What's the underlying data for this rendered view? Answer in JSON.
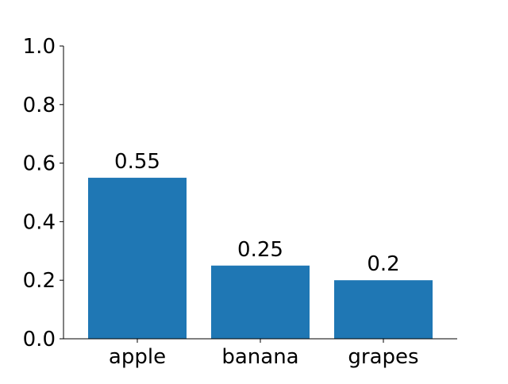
{
  "chart_data": {
    "type": "bar",
    "categories": [
      "apple",
      "banana",
      "grapes"
    ],
    "values": [
      0.55,
      0.25,
      0.2
    ],
    "value_labels": [
      "0.55",
      "0.25",
      "0.2"
    ],
    "ylim": [
      0.0,
      1.0
    ],
    "yticks": [
      0.0,
      0.2,
      0.4,
      0.6,
      0.8,
      1.0
    ],
    "ytick_labels": [
      "0.0",
      "0.2",
      "0.4",
      "0.6",
      "0.8",
      "1.0"
    ],
    "grid": false,
    "bar_color": "#1f77b4",
    "axis_color": "#000000",
    "spines_visible": [
      "left",
      "bottom"
    ]
  }
}
